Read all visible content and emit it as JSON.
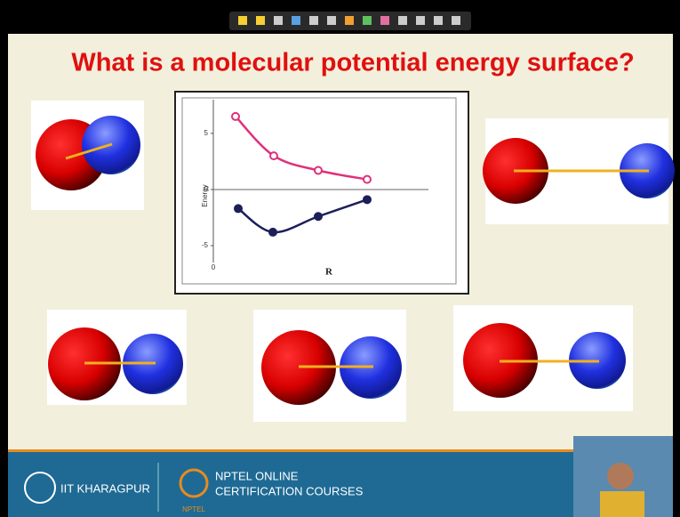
{
  "slide": {
    "title": "What is a molecular potential energy surface?"
  },
  "chart": {
    "ylabel": "Energy",
    "xlabel": "R",
    "xlim": [
      0,
      25
    ],
    "ylim": [
      -6.5,
      8
    ],
    "xticks": [
      0
    ],
    "yticks": [
      5,
      0,
      -5
    ],
    "series": [
      {
        "color": "#e0307a",
        "x": [
          2.5,
          6.8,
          11.8,
          17.3
        ],
        "values": [
          6.5,
          3.0,
          1.7,
          0.9
        ]
      },
      {
        "color": "#1c1f5a",
        "x": [
          2.8,
          6.7,
          11.8,
          17.3
        ],
        "values": [
          -1.7,
          -3.8,
          -2.4,
          -0.9
        ]
      }
    ]
  },
  "footer": {
    "institute": "IIT KHARAGPUR",
    "nptel_line1": "NPTEL ONLINE",
    "nptel_line2": "CERTIFICATION COURSES",
    "nptel_logo": "NPTEL"
  }
}
